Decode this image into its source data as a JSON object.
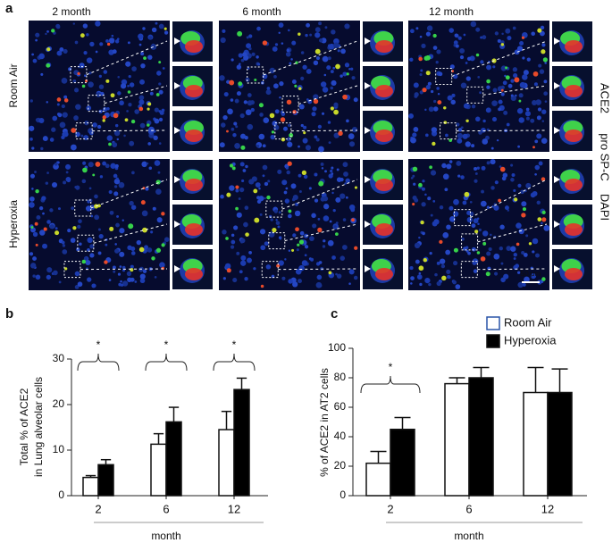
{
  "panel_a": {
    "label": "a",
    "columns": [
      "2 month",
      "6 month",
      "12 month"
    ],
    "rows": [
      "Room Air",
      "Hyperoxia"
    ],
    "stains": [
      {
        "text": "ACE2",
        "color": "#e8202a"
      },
      {
        "text": "pro SP-C",
        "color": "#1aa84a"
      },
      {
        "text": "DAPI",
        "color": "#2a55c8"
      }
    ],
    "scale_bar": "50 μm"
  },
  "chart_data": [
    {
      "type": "bar",
      "label": "b",
      "ylabel": [
        "Total  % of ACE2",
        "in  Lung alveolar cells"
      ],
      "xlabel": "month",
      "categories": [
        "2",
        "6",
        "12"
      ],
      "ylim": [
        0,
        30
      ],
      "yticks": [
        0,
        10,
        20,
        30
      ],
      "series": [
        {
          "color": "#ffffff",
          "values": [
            4,
            11.3,
            14.5
          ],
          "errors": [
            0.4,
            2.3,
            4
          ]
        },
        {
          "color": "#000000",
          "values": [
            6.8,
            16.2,
            23.3
          ],
          "errors": [
            1.1,
            3.2,
            2.5
          ]
        }
      ],
      "significance": [
        "*",
        "*",
        "*"
      ]
    },
    {
      "type": "bar",
      "label": "c",
      "ylabel": [
        "% of ACE2 in AT2 cells"
      ],
      "xlabel": "month",
      "categories": [
        "2",
        "6",
        "12"
      ],
      "ylim": [
        0,
        100
      ],
      "yticks": [
        0,
        20,
        40,
        60,
        80,
        100
      ],
      "legend": true,
      "series": [
        {
          "name": "Room Air",
          "color": "#ffffff",
          "values": [
            22,
            76,
            70
          ],
          "errors": [
            8,
            4,
            17
          ]
        },
        {
          "name": "Hyperoxia",
          "color": "#000000",
          "values": [
            45,
            80,
            70
          ],
          "errors": [
            8,
            7,
            16
          ]
        }
      ],
      "significance": [
        "*",
        null,
        null
      ]
    }
  ]
}
